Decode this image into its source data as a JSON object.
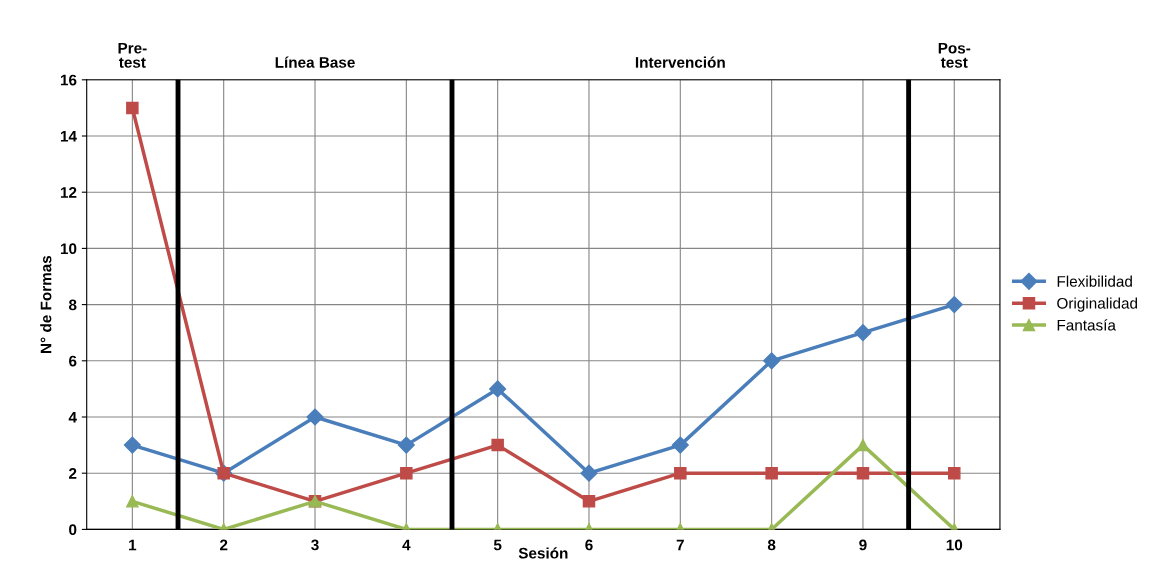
{
  "chart_data": {
    "type": "line",
    "xlabel": "Sesión",
    "ylabel": "N° de Formas",
    "x": [
      1,
      2,
      3,
      4,
      5,
      6,
      7,
      8,
      9,
      10
    ],
    "xlim": [
      0.5,
      10.5
    ],
    "xticks": [
      1,
      2,
      3,
      4,
      5,
      6,
      7,
      8,
      9,
      10
    ],
    "ylim": [
      0,
      16
    ],
    "yticks": [
      0,
      2,
      4,
      6,
      8,
      10,
      12,
      14,
      16
    ],
    "grid": true,
    "legend": "right",
    "line_style": "solid",
    "series": [
      {
        "name": "Flexibilidad",
        "color": "#4a7ebb",
        "marker": "diamond",
        "values": [
          3,
          2,
          4,
          3,
          5,
          2,
          3,
          6,
          7,
          8
        ]
      },
      {
        "name": "Originalidad",
        "color": "#be4b48",
        "marker": "square",
        "values": [
          15,
          2,
          1,
          2,
          3,
          1,
          2,
          2,
          2,
          2
        ]
      },
      {
        "name": "Fantasía",
        "color": "#98b954",
        "marker": "triangle",
        "values": [
          1,
          0,
          1,
          0,
          0,
          0,
          0,
          0,
          3,
          0
        ]
      }
    ],
    "ref_lines": [
      {
        "axis": "x",
        "value": 1.5,
        "color": "#000000",
        "line_style": "solid"
      },
      {
        "axis": "x",
        "value": 4.5,
        "color": "#000000",
        "line_style": "solid"
      },
      {
        "axis": "x",
        "value": 9.5,
        "color": "#000000",
        "line_style": "solid"
      }
    ],
    "annotations": [
      "Pre-\ntest",
      "Línea Base",
      "Intervención",
      "Pos-\ntest"
    ]
  }
}
